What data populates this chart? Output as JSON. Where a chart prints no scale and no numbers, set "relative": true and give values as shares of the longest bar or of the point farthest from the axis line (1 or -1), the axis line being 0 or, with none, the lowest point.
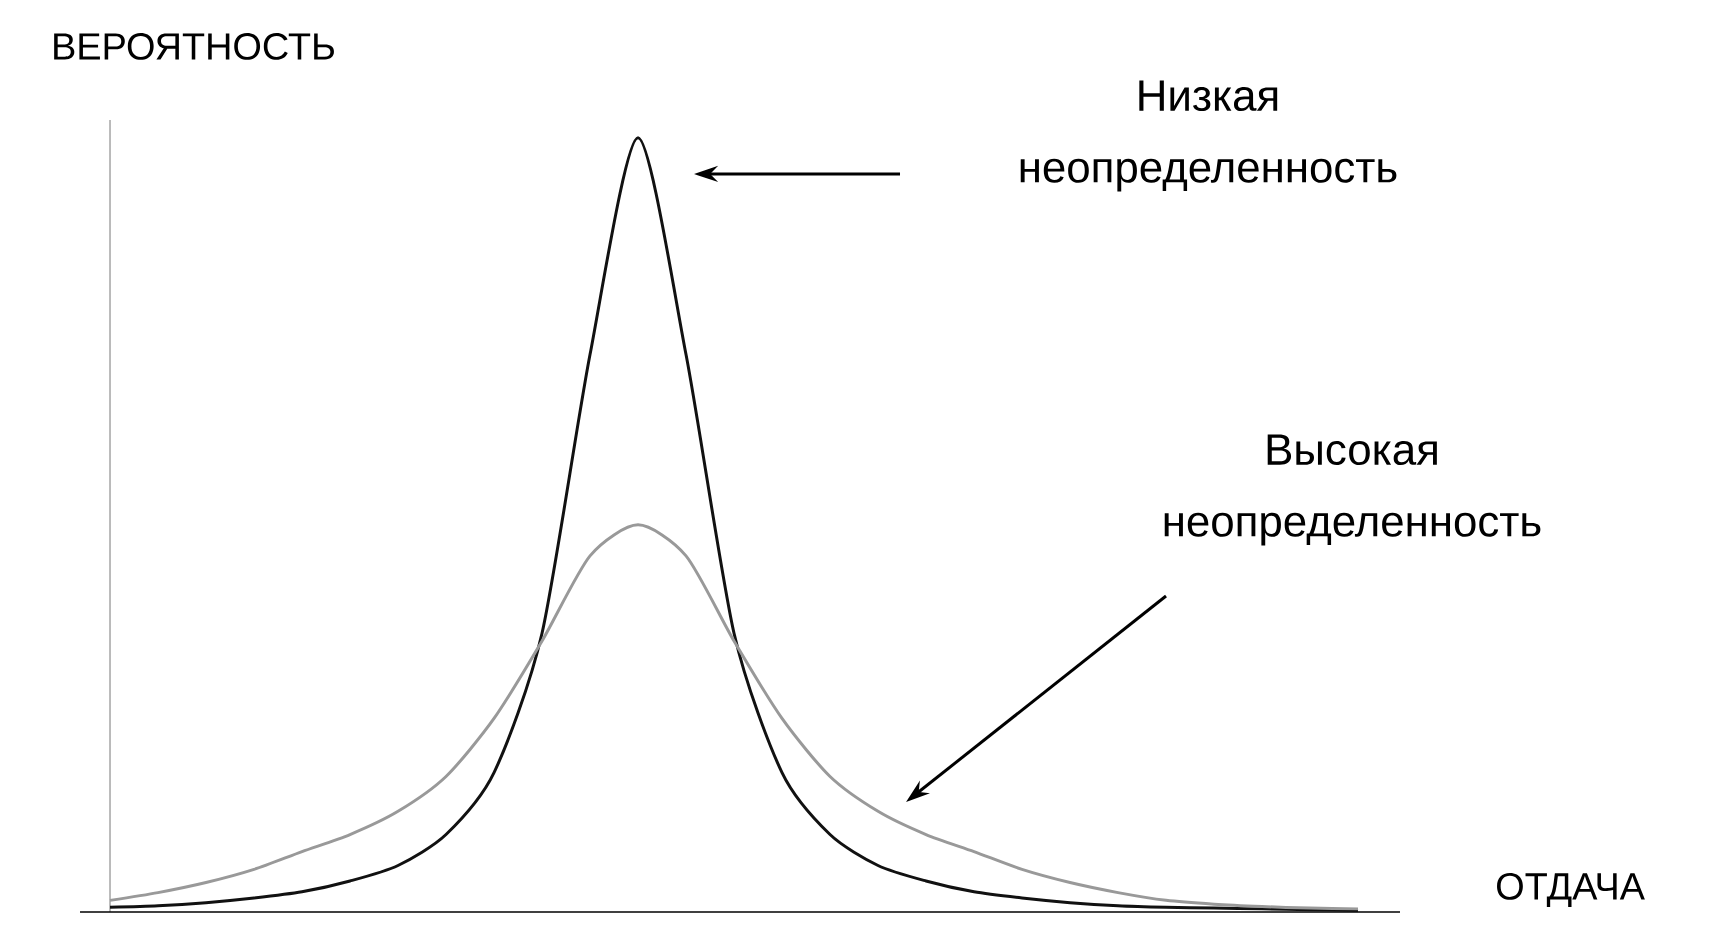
{
  "chart_data": {
    "type": "line",
    "relative": true,
    "xlabel": "ОТДАЧА",
    "ylabel": "ВЕРОЯТНОСТЬ",
    "annotations": [
      "Низкая неопределенность",
      "Высокая неопределенность"
    ],
    "categories": [
      null,
      null,
      null,
      null,
      null,
      null,
      null,
      null,
      null,
      null,
      null,
      null,
      null,
      null,
      null,
      null,
      null,
      null,
      null,
      null,
      null,
      null,
      null,
      null,
      null,
      null,
      null
    ],
    "series": [
      {
        "color": "#111111",
        "values": [
          0.006,
          0.008,
          0.012,
          0.018,
          0.026,
          0.04,
          0.06,
          0.1,
          0.18,
          0.36,
          0.72,
          1.0,
          0.72,
          0.36,
          0.18,
          0.1,
          0.06,
          0.04,
          0.026,
          0.018,
          0.012,
          0.008,
          0.006,
          0.005,
          0.004,
          0.003,
          0.002
        ]
      },
      {
        "color": "#999999",
        "values": [
          0.015,
          0.025,
          0.038,
          0.055,
          0.078,
          0.1,
          0.13,
          0.175,
          0.25,
          0.35,
          0.46,
          0.5,
          0.46,
          0.35,
          0.25,
          0.175,
          0.13,
          0.1,
          0.078,
          0.055,
          0.038,
          0.025,
          0.015,
          0.01,
          0.007,
          0.005,
          0.004
        ]
      }
    ]
  }
}
